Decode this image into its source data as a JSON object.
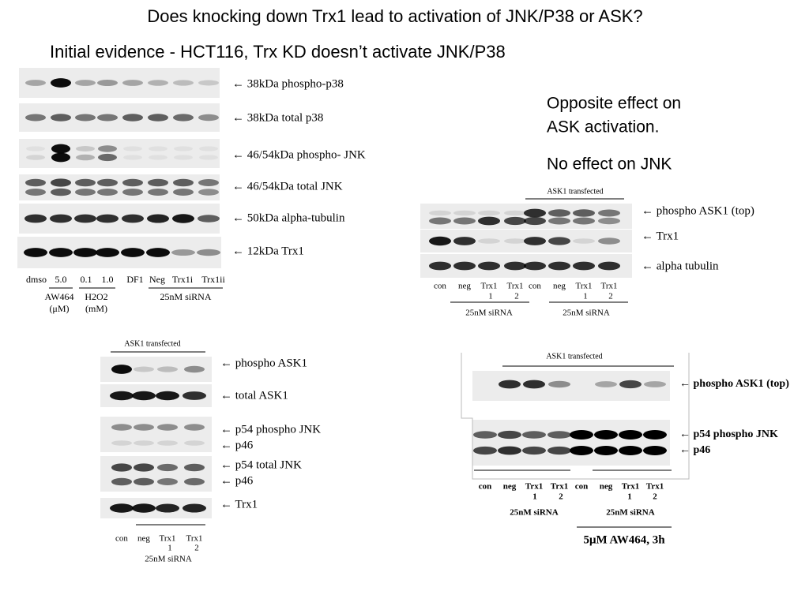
{
  "title": "Does knocking down Trx1 lead to activation of JNK/P38 or ASK?",
  "subtitle": "Initial evidence - HCT116, Trx KD doesn’t activate JNK/P38",
  "notes": [
    "Opposite effect on",
    "ASK activation.",
    "No effect on JNK"
  ],
  "panel_a": {
    "row_labels": [
      "← 38kDa phospho-p38",
      "← 38kDa  total p38",
      "← 46/54kDa phospho- JNK",
      "← 46/54kDa total JNK",
      "← 50kDa  alpha-tubulin",
      "← 12kDa Trx1"
    ],
    "lanes": [
      "dmso",
      "5.0",
      "0.1",
      "1.0",
      "DF1",
      "Neg",
      "Trx1i",
      "Trx1ii"
    ],
    "groups": [
      "AW464",
      "(μM)",
      "H2O2",
      "(mM)",
      "25nM siRNA"
    ]
  },
  "panel_b": {
    "header": "ASK1 transfected",
    "row_labels": [
      "← phospho ASK1 (top)",
      "← Trx1",
      "← alpha tubulin"
    ],
    "lanes": [
      "con",
      "neg",
      "Trx1",
      "Trx1",
      "con",
      "neg",
      "Trx1",
      "Trx1"
    ],
    "lane_numbers": [
      "1",
      "2",
      "1",
      "2"
    ],
    "groups": [
      "25nM siRNA",
      "25nM siRNA"
    ]
  },
  "panel_c": {
    "header": "ASK1 transfected",
    "row_labels": [
      "← phospho ASK1",
      "← total ASK1",
      "← p54 phospho JNK",
      "← p46",
      "← p54 total JNK",
      "← p46",
      "← Trx1"
    ],
    "lanes": [
      "con",
      "neg",
      "Trx1",
      "Trx1"
    ],
    "lane_numbers": [
      "1",
      "2"
    ],
    "group": "25nM siRNA"
  },
  "panel_d": {
    "header": "ASK1 transfected",
    "row_labels": [
      "← phospho ASK1 (top)",
      "← p54 phospho JNK",
      "← p46"
    ],
    "lanes": [
      "con",
      "neg",
      "Trx1",
      "Trx1",
      "con",
      "neg",
      "Trx1",
      "Trx1"
    ],
    "lane_numbers": [
      "1",
      "2",
      "1",
      "2"
    ],
    "groups": [
      "25nM siRNA",
      "25nM siRNA"
    ],
    "treatment": "5μM AW464, 3h"
  }
}
